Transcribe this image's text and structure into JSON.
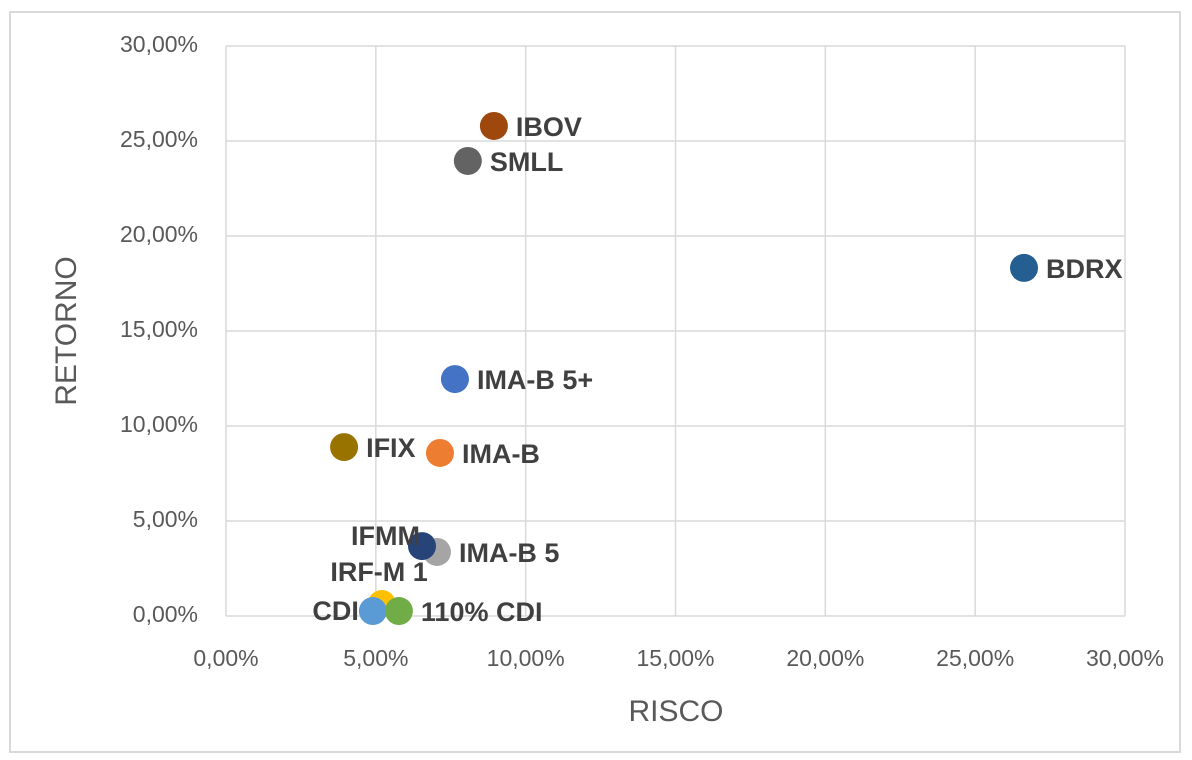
{
  "chart_data": {
    "type": "scatter",
    "x_label": "RISCO",
    "y_label": "RETORNO",
    "xlim": [
      0,
      30
    ],
    "ylim": [
      0,
      30
    ],
    "xticks": [
      {
        "value": 0,
        "label": "0,00%"
      },
      {
        "value": 5,
        "label": "5,00%"
      },
      {
        "value": 10,
        "label": "10,00%"
      },
      {
        "value": 15,
        "label": "15,00%"
      },
      {
        "value": 20,
        "label": "20,00%"
      },
      {
        "value": 25,
        "label": "25,00%"
      },
      {
        "value": 30,
        "label": "30,00%"
      }
    ],
    "yticks": [
      {
        "value": 0,
        "label": "0,00%"
      },
      {
        "value": 5,
        "label": "5,00%"
      },
      {
        "value": 10,
        "label": "10,00%"
      },
      {
        "value": 15,
        "label": "15,00%"
      },
      {
        "value": 20,
        "label": "20,00%"
      },
      {
        "value": 25,
        "label": "25,00%"
      },
      {
        "value": 30,
        "label": "30,00%"
      }
    ],
    "grid": true,
    "series": [
      {
        "name": "IBOV",
        "color": "#9e480e",
        "x": [
          8.94
        ],
        "values": [
          25.79
        ]
      },
      {
        "name": "SMLL",
        "color": "#636363",
        "x": [
          8.07
        ],
        "values": [
          23.95
        ]
      },
      {
        "name": "BDRX",
        "color": "#255e91",
        "x": [
          26.63
        ],
        "values": [
          18.32
        ]
      },
      {
        "name": "IMA-B 5+",
        "color": "#4472c4",
        "x": [
          7.64
        ],
        "values": [
          12.47
        ]
      },
      {
        "name": "IFIX",
        "color": "#997300",
        "x": [
          3.94
        ],
        "values": [
          8.89
        ]
      },
      {
        "name": "IMA-B",
        "color": "#ed7d31",
        "x": [
          7.14
        ],
        "values": [
          8.58
        ]
      },
      {
        "name": "IMA-B 5",
        "color": "#a5a5a5",
        "x": [
          7.04
        ],
        "values": [
          3.37
        ]
      },
      {
        "name": "IFMM",
        "color": "#264478",
        "x": [
          6.54
        ],
        "values": [
          3.68
        ]
      },
      {
        "name": "IRF-M 1",
        "color": "#ffc000",
        "x": [
          5.2
        ],
        "values": [
          0.63
        ]
      },
      {
        "name": "CDI",
        "color": "#5b9bd5",
        "x": [
          4.9
        ],
        "values": [
          0.26
        ]
      },
      {
        "name": "110% CDI",
        "color": "#70ad47",
        "x": [
          5.77
        ],
        "values": [
          0.26
        ]
      }
    ]
  }
}
